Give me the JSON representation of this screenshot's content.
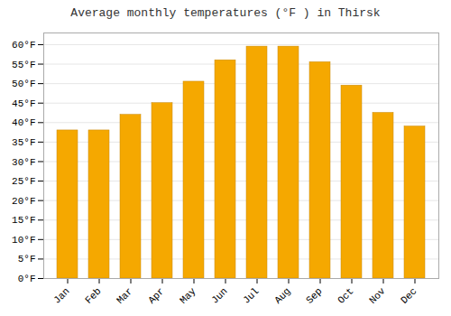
{
  "chart_data": {
    "type": "bar",
    "title": "Average monthly temperatures (°F ) in Thirsk",
    "categories": [
      "Jan",
      "Feb",
      "Mar",
      "Apr",
      "May",
      "Jun",
      "Jul",
      "Aug",
      "Sep",
      "Oct",
      "Nov",
      "Dec"
    ],
    "values": [
      38,
      38,
      42,
      45,
      50.5,
      56,
      59.5,
      59.5,
      55.5,
      49.5,
      42.5,
      39
    ],
    "color": "#F5A800",
    "ylim": [
      0,
      63
    ],
    "yticks": [
      {
        "value": 0,
        "label": "0°F"
      },
      {
        "value": 5,
        "label": "5°F"
      },
      {
        "value": 10,
        "label": "10°F"
      },
      {
        "value": 15,
        "label": "15°F"
      },
      {
        "value": 20,
        "label": "20°F"
      },
      {
        "value": 25,
        "label": "25°F"
      },
      {
        "value": 30,
        "label": "30°F"
      },
      {
        "value": 35,
        "label": "35°F"
      },
      {
        "value": 40,
        "label": "40°F"
      },
      {
        "value": 45,
        "label": "45°F"
      },
      {
        "value": 50,
        "label": "50°F"
      },
      {
        "value": 55,
        "label": "55°F"
      },
      {
        "value": 60,
        "label": "60°F"
      }
    ],
    "grid": true
  }
}
